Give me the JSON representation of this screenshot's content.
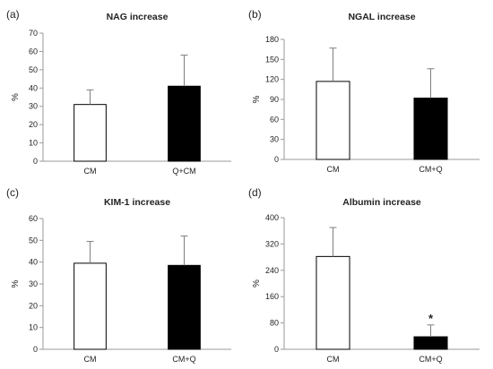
{
  "chart_data": [
    {
      "type": "bar",
      "panel_label": "(a)",
      "title": "NAG increase",
      "ylabel": "%",
      "ylim": [
        0,
        70
      ],
      "yticks": [
        0,
        10,
        20,
        30,
        40,
        50,
        60,
        70
      ],
      "categories": [
        "CM",
        "Q+CM"
      ],
      "values": [
        31,
        41
      ],
      "errors": [
        8,
        17
      ],
      "bar_colors": [
        "#ffffff",
        "#000000"
      ],
      "annotations": [
        "",
        ""
      ]
    },
    {
      "type": "bar",
      "panel_label": "(b)",
      "title": "NGAL increase",
      "ylabel": "%",
      "ylim": [
        0,
        180
      ],
      "yticks": [
        0,
        30,
        60,
        90,
        120,
        150,
        180
      ],
      "categories": [
        "CM",
        "CM+Q"
      ],
      "values": [
        117,
        92
      ],
      "errors": [
        50,
        44
      ],
      "bar_colors": [
        "#ffffff",
        "#000000"
      ],
      "annotations": [
        "",
        ""
      ]
    },
    {
      "type": "bar",
      "panel_label": "(c)",
      "title": "KIM-1 increase",
      "ylabel": "%",
      "ylim": [
        0,
        60
      ],
      "yticks": [
        0,
        10,
        20,
        30,
        40,
        50,
        60
      ],
      "categories": [
        "CM",
        "CM+Q"
      ],
      "values": [
        39.5,
        38.5
      ],
      "errors": [
        10,
        13.5
      ],
      "bar_colors": [
        "#ffffff",
        "#000000"
      ],
      "annotations": [
        "",
        ""
      ]
    },
    {
      "type": "bar",
      "panel_label": "(d)",
      "title": "Albumin increase",
      "ylabel": "%",
      "ylim": [
        0,
        400
      ],
      "yticks": [
        0,
        80,
        160,
        240,
        320,
        400
      ],
      "categories": [
        "CM",
        "CM+Q"
      ],
      "values": [
        282,
        38
      ],
      "errors": [
        88,
        36
      ],
      "bar_colors": [
        "#ffffff",
        "#000000"
      ],
      "annotations": [
        "",
        "*"
      ]
    }
  ]
}
